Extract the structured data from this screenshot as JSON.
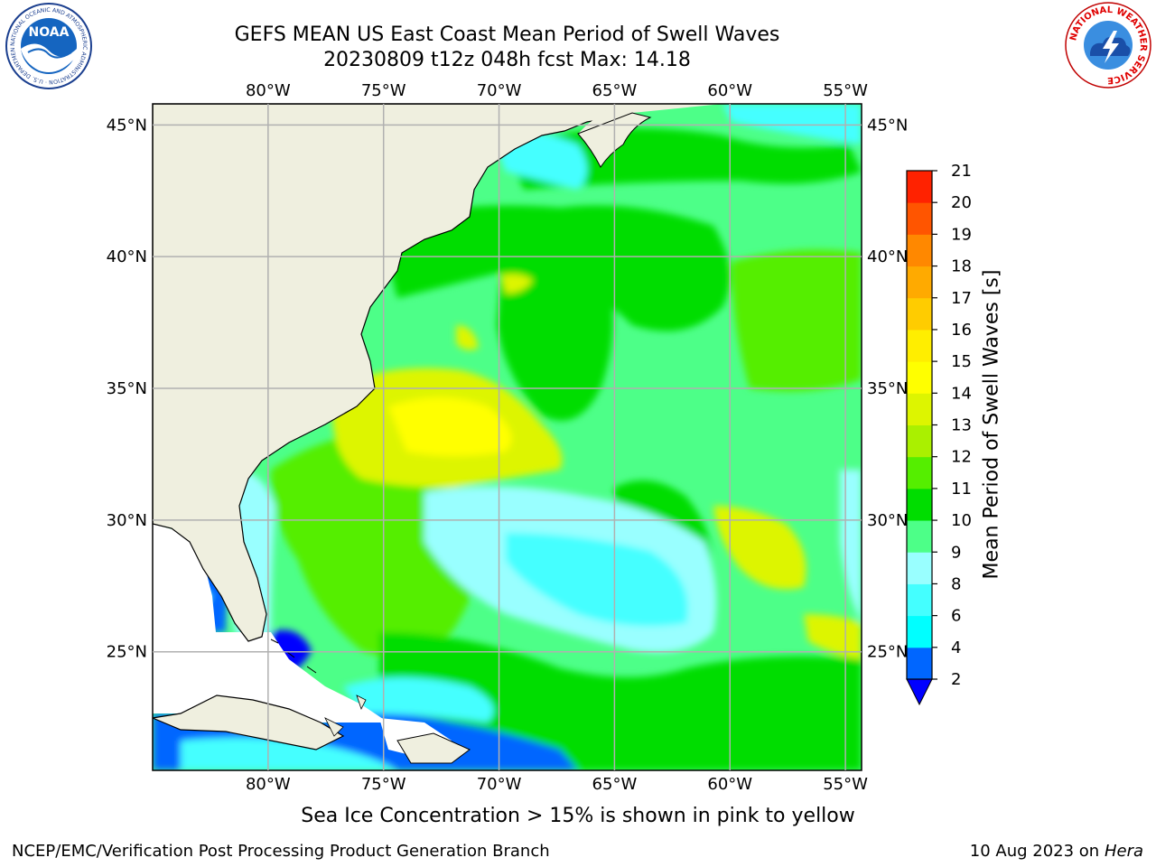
{
  "header": {
    "title_line1": "GEFS MEAN US East Coast Mean Period of Swell Waves",
    "title_line2": "20230809 t12z 048h fcst   Max: 14.18"
  },
  "logos": {
    "left": {
      "text": "NOAA",
      "ring_text": "NATIONAL OCEANIC AND ATMOSPHERIC ADMINISTRATION · U.S. DEPARTMENT OF COMMERCE"
    },
    "right": {
      "ring_text": "NATIONAL WEATHER SERVICE"
    }
  },
  "map": {
    "lon_labels": [
      "80°W",
      "75°W",
      "70°W",
      "65°W",
      "60°W",
      "55°W"
    ],
    "lat_labels": [
      "45°N",
      "40°N",
      "35°N",
      "30°N",
      "25°N"
    ],
    "lon_values": [
      -80,
      -75,
      -70,
      -65,
      -60,
      -55
    ],
    "lat_values": [
      45,
      40,
      35,
      30,
      25
    ],
    "extent": {
      "lon_min": -85,
      "lon_max": -54.3,
      "lat_min": 20.5,
      "lat_max": 45.8
    },
    "colors": {
      "land": "#efefdf",
      "ocean_default": "#4dff88",
      "grid": "#b0b0b0"
    }
  },
  "colorbar": {
    "label": "Mean Period of Swell Waves [s]",
    "ticks": [
      "2",
      "4",
      "6",
      "8",
      "9",
      "10",
      "11",
      "12",
      "13",
      "14",
      "15",
      "16",
      "17",
      "18",
      "19",
      "20",
      "21"
    ],
    "bands": [
      "#0066ff",
      "#00ffff",
      "#44ffff",
      "#99ffff",
      "#4dff88",
      "#00dd00",
      "#55ee00",
      "#aaf000",
      "#ddf500",
      "#ffff00",
      "#ffee00",
      "#ffcc00",
      "#ffaa00",
      "#ff8800",
      "#ff5500",
      "#ff2200",
      "#ff0000"
    ],
    "under_color": "#0000ff"
  },
  "note": "Sea Ice Concentration > 15% is shown in pink to yellow",
  "footer": {
    "left": "NCEP/EMC/Verification Post Processing Product Generation Branch",
    "right_prefix": "10 Aug 2023 on",
    "right_machine": "Hera"
  }
}
